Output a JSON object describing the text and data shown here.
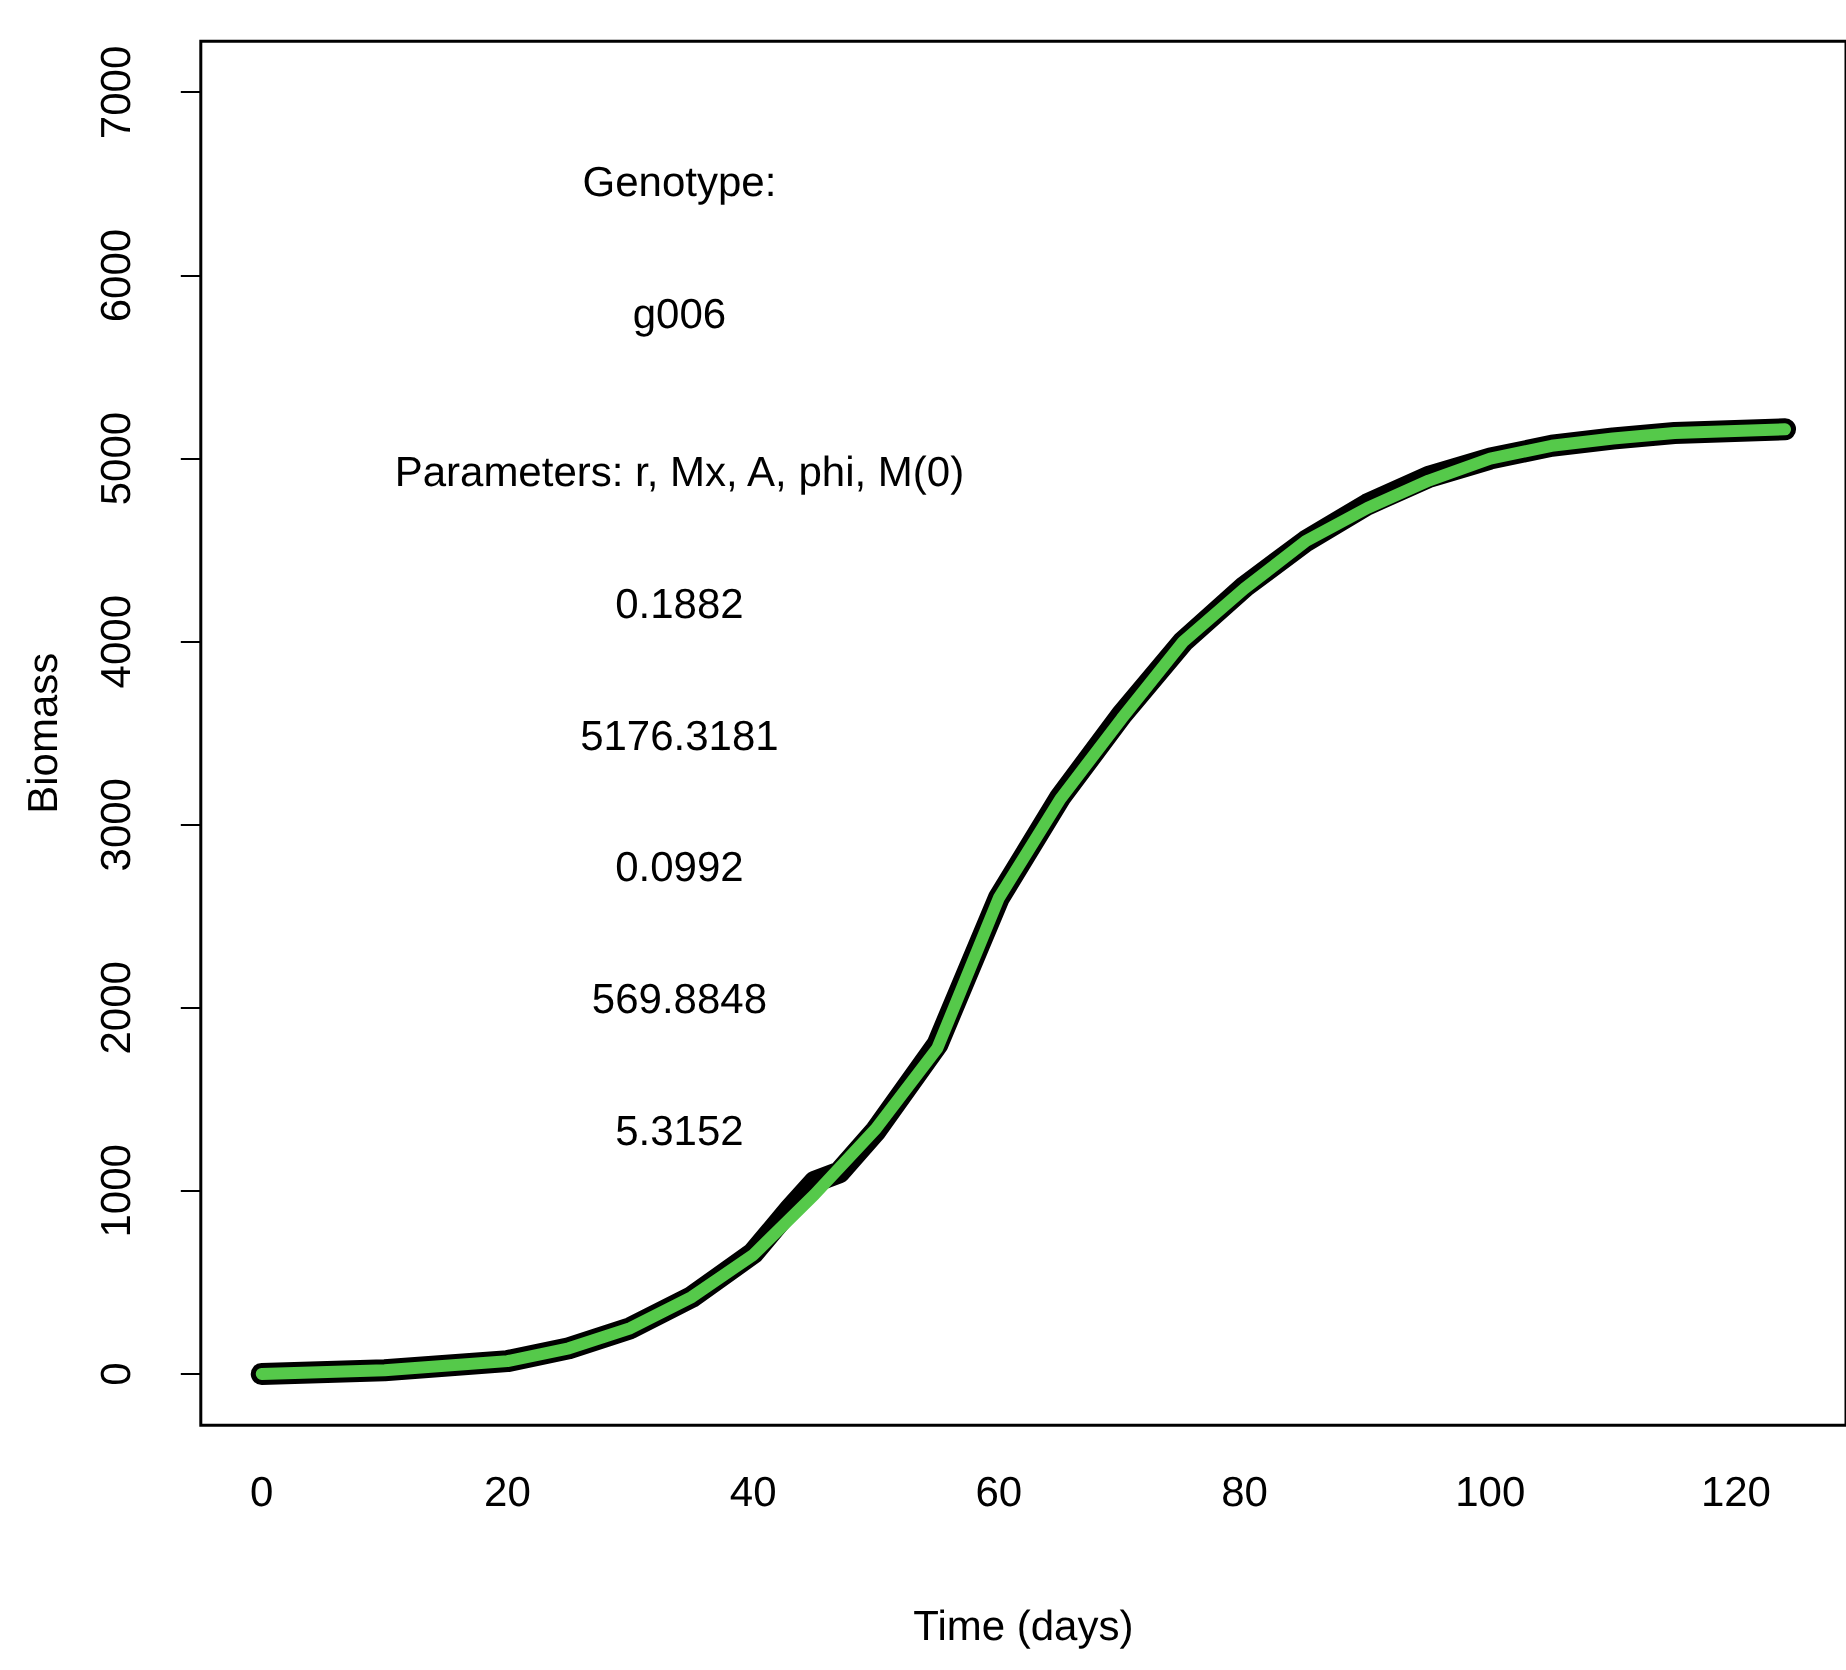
{
  "chart_data": {
    "type": "line",
    "xlabel": "Time (days)",
    "ylabel": "Biomass",
    "annotations": [
      "Genotype:",
      "g006",
      "Parameters: r, Mx, A, phi, M(0)",
      "0.1882",
      "5176.3181",
      "0.0992",
      "569.8848",
      "5.3152"
    ],
    "series": [
      {
        "color": "#000000",
        "x": [
          0,
          10,
          20,
          25,
          30,
          35,
          40,
          43,
          45,
          47,
          50,
          55,
          60,
          65,
          70,
          75,
          80,
          85,
          90,
          95,
          100,
          105,
          110,
          115,
          124
        ],
        "values": [
          0,
          20,
          70,
          140,
          250,
          420,
          660,
          900,
          1050,
          1100,
          1330,
          1800,
          2600,
          3150,
          3600,
          4000,
          4300,
          4550,
          4750,
          4900,
          5000,
          5070,
          5110,
          5140,
          5160
        ]
      },
      {
        "color": "#55c94a",
        "x": [
          0,
          10,
          20,
          25,
          30,
          35,
          40,
          45,
          50,
          55,
          60,
          65,
          70,
          75,
          80,
          85,
          90,
          95,
          100,
          105,
          110,
          115,
          124
        ],
        "values": [
          0,
          20,
          70,
          140,
          250,
          420,
          650,
          980,
          1340,
          1780,
          2600,
          3140,
          3580,
          4000,
          4290,
          4550,
          4730,
          4880,
          5000,
          5070,
          5110,
          5140,
          5160
        ]
      }
    ],
    "xlim": [
      -4.96,
      128.96
    ],
    "ylim": [
      -280,
      7280
    ],
    "xticks": [
      0,
      20,
      40,
      60,
      80,
      100,
      120
    ],
    "yticks": [
      0,
      1000,
      2000,
      3000,
      4000,
      5000,
      6000,
      7000
    ],
    "grid": false,
    "legend": false,
    "marker": "none",
    "line_style": "solid"
  }
}
